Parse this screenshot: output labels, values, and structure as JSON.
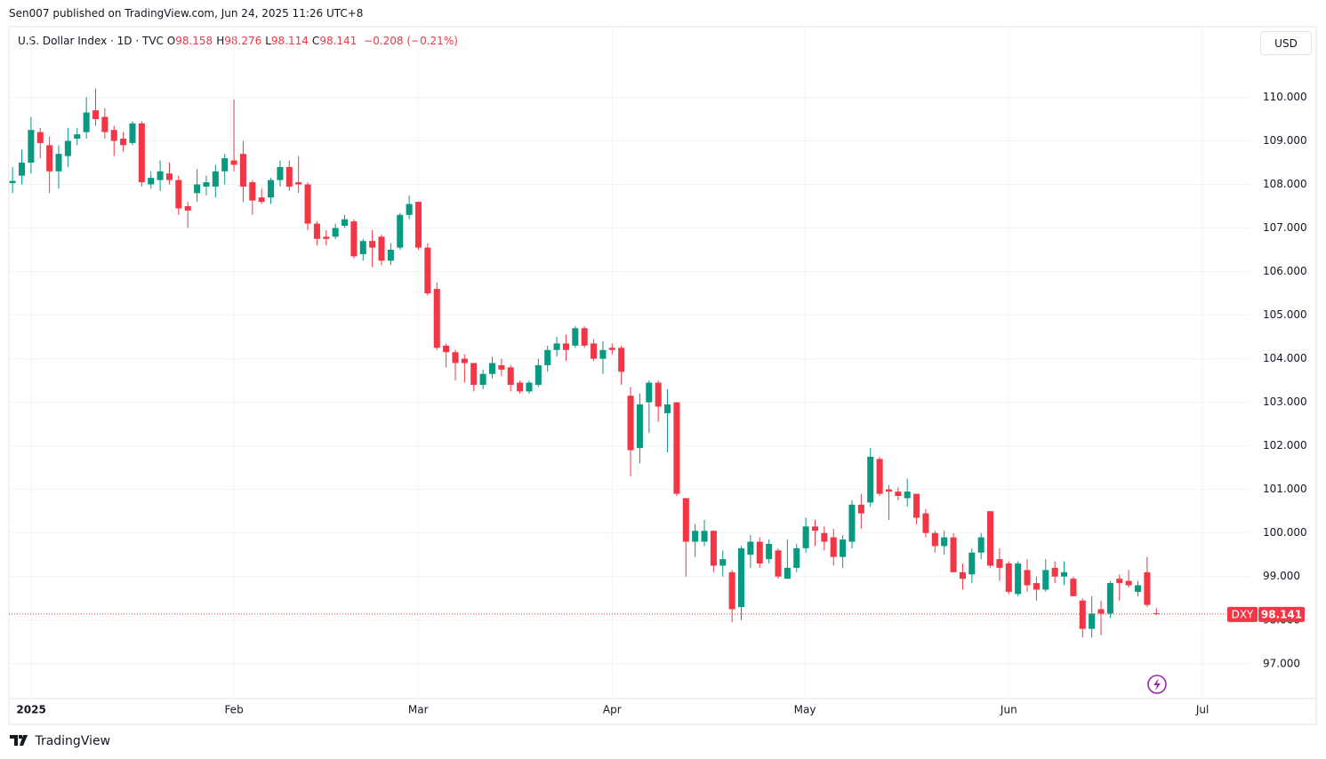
{
  "page": {
    "byline": "Sen007 published on TradingView.com, Jun 24, 2025 11:26 UTC+8",
    "brand": "TradingView",
    "currency": "USD"
  },
  "chart_data": {
    "type": "candlestick",
    "title": "U.S. Dollar Index · 1D · TVC",
    "legend_ohlc": [
      {
        "key": "O",
        "text": "98.158"
      },
      {
        "key": "H",
        "text": "98.276"
      },
      {
        "key": "L",
        "text": "98.114"
      },
      {
        "key": "C",
        "text": "98.141"
      }
    ],
    "change": "−0.208 (−0.21%)",
    "symbol_label": "DXY",
    "last_price": 98.141,
    "up_color": "#089981",
    "down_color": "#f23645",
    "grid": true,
    "xlim": [
      -0.4,
      134.1
    ],
    "xticks": [
      {
        "value": 2.02,
        "label": "2025"
      },
      {
        "value": 24.0,
        "label": "Feb"
      },
      {
        "value": 43.97,
        "label": "Mar"
      },
      {
        "value": 65.0,
        "label": "Apr"
      },
      {
        "value": 85.9,
        "label": "May"
      },
      {
        "value": 108.0,
        "label": "Jun"
      },
      {
        "value": 129.0,
        "label": "Jul"
      }
    ],
    "ylim": [
      96.2,
      111.6
    ],
    "yticks": [
      {
        "value": 97,
        "label": "97.000"
      },
      {
        "value": 98,
        "label": "98.000"
      },
      {
        "value": 99,
        "label": "99.000"
      },
      {
        "value": 100,
        "label": "100.000"
      },
      {
        "value": 101,
        "label": "101.000"
      },
      {
        "value": 102,
        "label": "102.000"
      },
      {
        "value": 103,
        "label": "103.000"
      },
      {
        "value": 104,
        "label": "104.000"
      },
      {
        "value": 105,
        "label": "105.000"
      },
      {
        "value": 106,
        "label": "106.000"
      },
      {
        "value": 107,
        "label": "107.000"
      },
      {
        "value": 108,
        "label": "108.000"
      },
      {
        "value": 109,
        "label": "109.000"
      },
      {
        "value": 110,
        "label": "110.000"
      }
    ],
    "open": [
      108.03,
      108.2,
      108.5,
      109.2,
      108.9,
      108.3,
      108.65,
      109.05,
      109.2,
      109.7,
      109.55,
      109.25,
      109.05,
      108.95,
      109.4,
      108.0,
      108.1,
      108.25,
      108.1,
      107.5,
      107.8,
      107.95,
      107.95,
      108.3,
      108.55,
      108.7,
      108.05,
      107.7,
      107.7,
      108.1,
      108.4,
      108.05,
      108.0,
      107.1,
      106.8,
      106.8,
      107.05,
      107.15,
      106.4,
      106.7,
      106.8,
      106.25,
      106.55,
      107.3,
      107.6,
      106.55,
      105.6,
      104.3,
      104.15,
      104.0,
      103.9,
      103.4,
      103.65,
      103.85,
      103.8,
      103.45,
      103.25,
      103.4,
      103.85,
      104.2,
      104.35,
      104.3,
      104.7,
      104.35,
      104.0,
      104.25,
      104.25,
      103.15,
      101.95,
      103.0,
      103.45,
      102.75,
      103.0,
      100.8,
      99.8,
      99.8,
      100.05,
      99.25,
      99.1,
      98.3,
      99.5,
      99.8,
      99.4,
      99.6,
      98.95,
      99.2,
      99.65,
      100.15,
      100.0,
      99.9,
      99.45,
      99.8,
      100.65,
      100.7,
      101.7,
      101.0,
      100.95,
      100.8,
      100.9,
      100.45,
      100.0,
      99.7,
      99.9,
      99.1,
      99.05,
      99.55,
      100.5,
      99.4,
      99.3,
      98.6,
      99.15,
      98.85,
      98.7,
      99.2,
      99.0,
      98.95,
      98.45,
      97.8,
      98.25,
      98.15,
      98.95,
      98.9,
      98.65,
      99.1,
      98.158
    ],
    "high": [
      108.4,
      108.8,
      109.55,
      109.3,
      109.1,
      108.9,
      109.3,
      109.3,
      110.0,
      110.2,
      109.75,
      109.35,
      109.2,
      109.45,
      109.45,
      108.3,
      108.55,
      108.5,
      108.2,
      107.6,
      108.35,
      108.2,
      108.45,
      108.7,
      109.95,
      109.0,
      108.1,
      107.9,
      108.15,
      108.55,
      108.55,
      108.65,
      108.05,
      107.15,
      106.95,
      107.1,
      107.3,
      107.2,
      106.75,
      106.95,
      106.85,
      106.65,
      107.35,
      107.75,
      107.6,
      106.65,
      105.75,
      104.35,
      104.2,
      104.1,
      103.9,
      103.75,
      104.05,
      104.0,
      103.85,
      103.5,
      103.5,
      104.0,
      104.3,
      104.5,
      104.55,
      104.75,
      104.75,
      104.45,
      104.4,
      104.35,
      104.3,
      103.35,
      103.2,
      103.5,
      103.5,
      103.3,
      103.0,
      100.8,
      100.2,
      100.3,
      100.05,
      99.6,
      99.15,
      99.7,
      99.95,
      99.9,
      99.85,
      99.65,
      99.85,
      99.75,
      100.35,
      100.3,
      100.15,
      100.1,
      99.95,
      100.75,
      100.9,
      101.95,
      101.75,
      101.1,
      101.05,
      101.25,
      100.9,
      100.55,
      100.05,
      100.05,
      100.0,
      99.3,
      99.65,
      100.0,
      100.5,
      99.65,
      99.35,
      99.35,
      99.4,
      99.0,
      99.4,
      99.35,
      99.35,
      99.0,
      98.5,
      98.55,
      98.45,
      98.9,
      99.05,
      99.15,
      98.9,
      99.45,
      98.276
    ],
    "low": [
      107.8,
      108.0,
      108.25,
      108.6,
      107.8,
      107.9,
      108.4,
      108.9,
      109.05,
      109.35,
      109.05,
      108.65,
      108.75,
      108.9,
      107.95,
      107.9,
      107.85,
      108.0,
      107.3,
      107.0,
      107.6,
      107.75,
      107.7,
      108.0,
      108.3,
      107.6,
      107.3,
      107.55,
      107.55,
      107.95,
      107.85,
      107.8,
      106.95,
      106.6,
      106.6,
      106.75,
      107.0,
      106.3,
      106.25,
      106.1,
      106.15,
      106.15,
      106.5,
      107.2,
      106.5,
      105.45,
      104.2,
      103.8,
      103.5,
      103.45,
      103.25,
      103.3,
      103.55,
      103.6,
      103.25,
      103.2,
      103.2,
      103.35,
      103.7,
      104.05,
      103.95,
      104.25,
      104.25,
      103.95,
      103.65,
      104.1,
      103.4,
      101.3,
      101.6,
      102.3,
      102.55,
      101.85,
      100.85,
      99.0,
      99.45,
      99.7,
      99.1,
      99.0,
      97.95,
      98.0,
      99.2,
      99.2,
      99.3,
      98.95,
      98.95,
      99.1,
      99.55,
      99.7,
      99.6,
      99.25,
      99.2,
      99.65,
      100.1,
      100.6,
      100.85,
      100.3,
      100.75,
      100.6,
      100.2,
      99.9,
      99.55,
      99.5,
      99.1,
      98.7,
      98.85,
      99.4,
      99.2,
      98.9,
      98.6,
      98.55,
      98.65,
      98.45,
      98.65,
      98.85,
      98.8,
      98.55,
      97.6,
      97.6,
      97.65,
      98.05,
      98.45,
      98.75,
      98.55,
      98.3,
      98.114
    ],
    "close": [
      108.08,
      108.5,
      109.25,
      108.95,
      108.3,
      108.7,
      109.0,
      109.15,
      109.65,
      109.5,
      109.2,
      109.0,
      108.9,
      109.4,
      108.05,
      108.15,
      108.3,
      108.1,
      107.45,
      107.4,
      108.0,
      108.05,
      108.3,
      108.6,
      108.45,
      107.95,
      107.63,
      107.6,
      108.1,
      108.4,
      107.95,
      108.0,
      107.1,
      106.75,
      106.75,
      107.0,
      107.2,
      106.35,
      106.7,
      106.55,
      106.25,
      106.5,
      107.3,
      107.55,
      106.55,
      105.5,
      104.25,
      104.15,
      103.9,
      103.9,
      103.4,
      103.65,
      103.9,
      103.75,
      103.4,
      103.25,
      103.45,
      103.85,
      104.2,
      104.35,
      104.2,
      104.7,
      104.3,
      104.0,
      104.2,
      104.2,
      103.7,
      101.9,
      102.95,
      103.45,
      102.9,
      102.95,
      100.9,
      99.8,
      100.05,
      100.05,
      99.25,
      99.4,
      98.25,
      99.65,
      99.8,
      99.3,
      99.75,
      99.0,
      99.2,
      99.65,
      100.15,
      100.05,
      99.8,
      99.45,
      99.85,
      100.65,
      100.45,
      101.75,
      100.9,
      100.95,
      100.85,
      100.95,
      100.35,
      100.0,
      99.7,
      99.9,
      99.1,
      98.95,
      99.55,
      99.9,
      99.25,
      99.2,
      98.65,
      99.3,
      98.8,
      98.7,
      99.15,
      99.0,
      99.1,
      98.55,
      97.8,
      98.15,
      98.15,
      98.85,
      98.85,
      98.8,
      98.8,
      98.35,
      98.141
    ]
  }
}
